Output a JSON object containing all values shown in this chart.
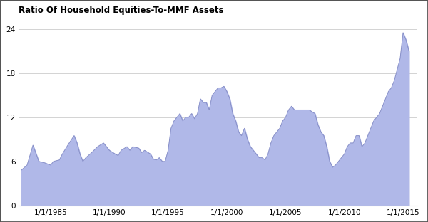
{
  "title": "Ratio Of Household Equities-To-MMF Assets",
  "fill_color": "#b0b8e8",
  "line_color": "#8890c8",
  "background_color": "#ffffff",
  "grid_color": "#cccccc",
  "border_color": "#555555",
  "yticks": [
    0,
    6,
    12,
    18,
    24
  ],
  "xtick_labels": [
    "1/1/1985",
    "1/1/1990",
    "1/1/1995",
    "1/1/2000",
    "1/1/2005",
    "1/1/2010",
    "1/1/2015"
  ],
  "xtick_years": [
    1985,
    1990,
    1995,
    2000,
    2005,
    2010,
    2015
  ],
  "xlim": [
    1982.3,
    2016.2
  ],
  "ylim": [
    0,
    25.5
  ],
  "data": [
    [
      1982.5,
      4.8
    ],
    [
      1983.0,
      5.5
    ],
    [
      1983.5,
      8.2
    ],
    [
      1984.0,
      6.0
    ],
    [
      1984.5,
      5.8
    ],
    [
      1985.0,
      5.5
    ],
    [
      1985.25,
      6.0
    ],
    [
      1985.75,
      6.2
    ],
    [
      1986.0,
      7.0
    ],
    [
      1986.5,
      8.3
    ],
    [
      1987.0,
      9.5
    ],
    [
      1987.25,
      8.5
    ],
    [
      1987.5,
      7.0
    ],
    [
      1987.75,
      6.0
    ],
    [
      1988.0,
      6.5
    ],
    [
      1988.5,
      7.2
    ],
    [
      1989.0,
      8.0
    ],
    [
      1989.5,
      8.5
    ],
    [
      1989.75,
      8.0
    ],
    [
      1990.0,
      7.5
    ],
    [
      1990.5,
      7.0
    ],
    [
      1990.75,
      6.8
    ],
    [
      1991.0,
      7.5
    ],
    [
      1991.5,
      8.0
    ],
    [
      1991.75,
      7.5
    ],
    [
      1992.0,
      8.0
    ],
    [
      1992.5,
      7.8
    ],
    [
      1992.75,
      7.2
    ],
    [
      1993.0,
      7.5
    ],
    [
      1993.5,
      7.0
    ],
    [
      1993.75,
      6.3
    ],
    [
      1994.0,
      6.2
    ],
    [
      1994.25,
      6.5
    ],
    [
      1994.5,
      6.0
    ],
    [
      1994.75,
      6.0
    ],
    [
      1995.0,
      7.5
    ],
    [
      1995.25,
      10.5
    ],
    [
      1995.5,
      11.5
    ],
    [
      1995.75,
      12.0
    ],
    [
      1996.0,
      12.5
    ],
    [
      1996.25,
      11.5
    ],
    [
      1996.5,
      12.0
    ],
    [
      1996.75,
      12.0
    ],
    [
      1997.0,
      12.5
    ],
    [
      1997.25,
      11.8
    ],
    [
      1997.5,
      12.5
    ],
    [
      1997.75,
      14.5
    ],
    [
      1998.0,
      14.0
    ],
    [
      1998.25,
      14.0
    ],
    [
      1998.5,
      13.0
    ],
    [
      1998.75,
      15.0
    ],
    [
      1999.0,
      15.5
    ],
    [
      1999.25,
      16.0
    ],
    [
      1999.5,
      16.0
    ],
    [
      1999.75,
      16.2
    ],
    [
      2000.0,
      15.5
    ],
    [
      2000.25,
      14.5
    ],
    [
      2000.5,
      12.5
    ],
    [
      2000.75,
      11.5
    ],
    [
      2001.0,
      10.0
    ],
    [
      2001.25,
      9.5
    ],
    [
      2001.5,
      10.5
    ],
    [
      2001.75,
      9.0
    ],
    [
      2002.0,
      8.0
    ],
    [
      2002.25,
      7.5
    ],
    [
      2002.5,
      7.0
    ],
    [
      2002.75,
      6.5
    ],
    [
      2003.0,
      6.5
    ],
    [
      2003.25,
      6.2
    ],
    [
      2003.5,
      7.0
    ],
    [
      2003.75,
      8.5
    ],
    [
      2004.0,
      9.5
    ],
    [
      2004.5,
      10.5
    ],
    [
      2004.75,
      11.5
    ],
    [
      2005.0,
      12.0
    ],
    [
      2005.25,
      13.0
    ],
    [
      2005.5,
      13.5
    ],
    [
      2005.75,
      13.0
    ],
    [
      2006.0,
      13.0
    ],
    [
      2006.25,
      13.0
    ],
    [
      2006.5,
      13.0
    ],
    [
      2006.75,
      13.0
    ],
    [
      2007.0,
      13.0
    ],
    [
      2007.5,
      12.5
    ],
    [
      2007.75,
      11.0
    ],
    [
      2008.0,
      10.0
    ],
    [
      2008.25,
      9.5
    ],
    [
      2008.5,
      8.0
    ],
    [
      2008.75,
      6.0
    ],
    [
      2009.0,
      5.2
    ],
    [
      2009.25,
      5.5
    ],
    [
      2009.5,
      6.0
    ],
    [
      2009.75,
      6.5
    ],
    [
      2010.0,
      7.0
    ],
    [
      2010.25,
      8.0
    ],
    [
      2010.5,
      8.5
    ],
    [
      2010.75,
      8.5
    ],
    [
      2011.0,
      9.5
    ],
    [
      2011.25,
      9.5
    ],
    [
      2011.5,
      8.0
    ],
    [
      2011.75,
      8.5
    ],
    [
      2012.0,
      9.5
    ],
    [
      2012.25,
      10.5
    ],
    [
      2012.5,
      11.5
    ],
    [
      2012.75,
      12.0
    ],
    [
      2013.0,
      12.5
    ],
    [
      2013.25,
      13.5
    ],
    [
      2013.5,
      14.5
    ],
    [
      2013.75,
      15.5
    ],
    [
      2014.0,
      16.0
    ],
    [
      2014.25,
      17.0
    ],
    [
      2014.5,
      18.5
    ],
    [
      2014.75,
      20.0
    ],
    [
      2015.0,
      23.5
    ],
    [
      2015.25,
      22.5
    ],
    [
      2015.5,
      21.0
    ]
  ]
}
